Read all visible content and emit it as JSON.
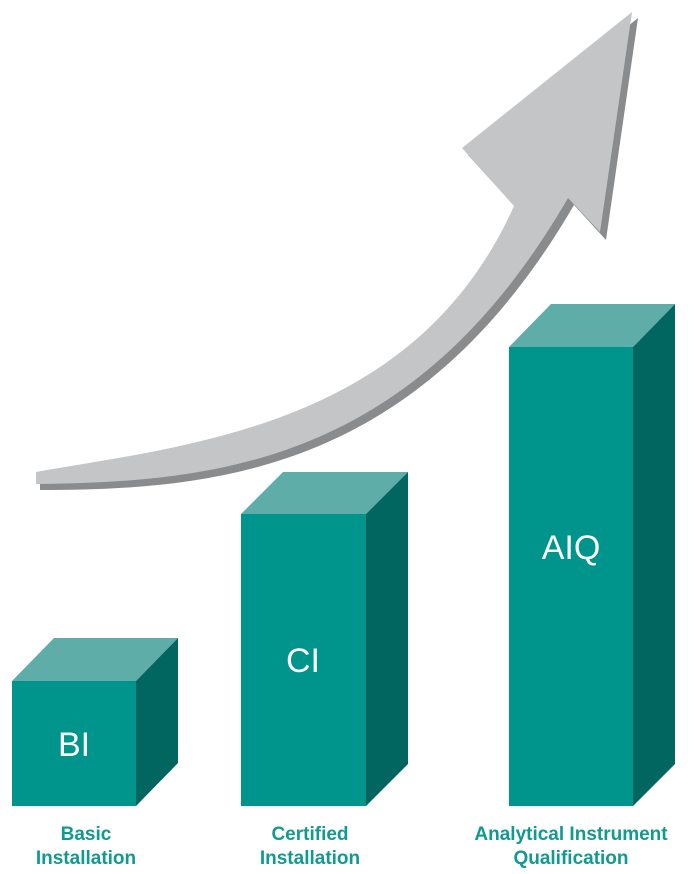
{
  "bars": [
    {
      "code": "BI",
      "caption_line1": "Basic",
      "caption_line2": "Installation"
    },
    {
      "code": "CI",
      "caption_line1": "Certified",
      "caption_line2": "Installation"
    },
    {
      "code": "AIQ",
      "caption_line1": "Analytical Instrument",
      "caption_line2": "Qualification"
    }
  ],
  "colors": {
    "bar_front": "#00958c",
    "bar_top": "#5fada8",
    "bar_side": "#00665f",
    "arrow_fill": "#c4c5c7",
    "arrow_shadow": "#8a8b8d",
    "caption_text": "#109a90",
    "bar_text": "#ffffff"
  },
  "icons": {
    "growth_arrow": "curved-up-arrow-icon"
  }
}
